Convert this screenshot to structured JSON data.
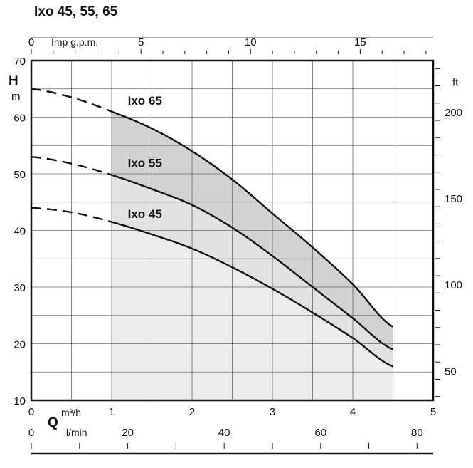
{
  "title": "Ixo 45, 55, 65",
  "chart_data": {
    "type": "line",
    "title": "Ixo 45, 55, 65",
    "x": [
      0,
      0.5,
      1,
      1.5,
      2,
      2.5,
      3,
      3.5,
      4,
      4.5
    ],
    "xlabel": "m³/h",
    "ylabel": "m",
    "ylabel_symbol": "H",
    "xlabel_symbol": "Q",
    "xlim": [
      0,
      5
    ],
    "ylim": [
      10,
      70
    ],
    "x_ticks": [
      0,
      1,
      2,
      3,
      4,
      5
    ],
    "y_ticks": [
      10,
      20,
      30,
      40,
      50,
      60,
      70
    ],
    "dashed_until_x": 1,
    "operating_range": [
      1,
      4.5
    ],
    "grid": true,
    "series": [
      {
        "name": "Ixo 65",
        "values": [
          65,
          63.5,
          61,
          58,
          54,
          49,
          43,
          37,
          30.5,
          23
        ]
      },
      {
        "name": "Ixo 55",
        "values": [
          53,
          51.8,
          49.8,
          47.3,
          44.5,
          40.5,
          35.5,
          30,
          24.5,
          19
        ]
      },
      {
        "name": "Ixo 45",
        "values": [
          44,
          43.2,
          41.5,
          39.3,
          36.8,
          33.5,
          29.7,
          25.5,
          21,
          16
        ]
      }
    ],
    "secondary_axes": {
      "top": {
        "label": "Imp g.p.m.",
        "ticks": [
          0,
          5,
          10,
          15
        ]
      },
      "bottom_lmin": {
        "label": "l/min",
        "ticks": [
          0,
          20,
          40,
          60,
          80
        ]
      },
      "right_ft": {
        "label": "ft",
        "ticks": [
          50,
          100,
          150,
          200
        ]
      }
    }
  }
}
